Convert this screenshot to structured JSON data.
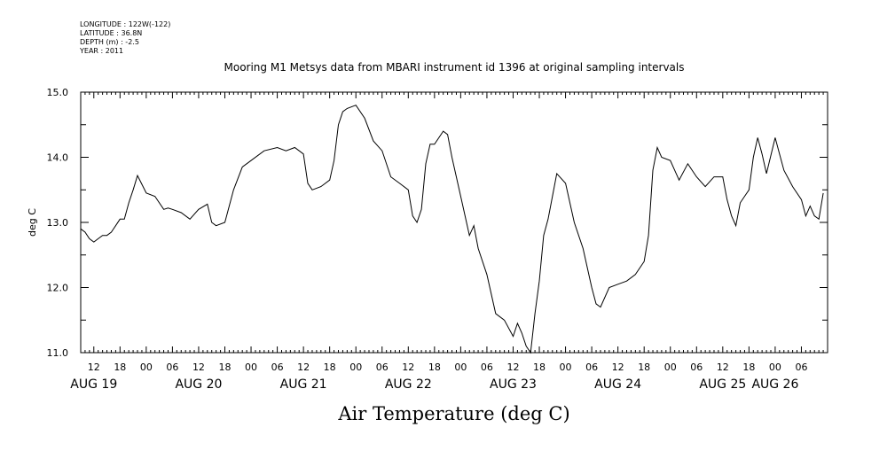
{
  "header": {
    "meta_lines": [
      "LONGITUDE : 122W(-122)",
      "LATITUDE : 36.8N",
      "DEPTH (m) : -2.5",
      "YEAR : 2011"
    ],
    "title": "Mooring M1 Metsys data from MBARI instrument id 1396 at original sampling intervals"
  },
  "chart_data": {
    "type": "line",
    "title": "Mooring M1 Metsys data from MBARI instrument id 1396 at original sampling intervals",
    "xlabel": "Air Temperature (deg C)",
    "ylabel": "deg C",
    "ylim": [
      11.0,
      15.0
    ],
    "yticks": [
      "11.0",
      "12.0",
      "13.0",
      "14.0",
      "15.0"
    ],
    "xlim": [
      "2011-08-19 09:00",
      "2011-08-26 12:00"
    ],
    "x_hour_ticks": [
      {
        "t": "2011-08-19 12:00",
        "label": "12"
      },
      {
        "t": "2011-08-19 18:00",
        "label": "18"
      },
      {
        "t": "2011-08-20 00:00",
        "label": "00"
      },
      {
        "t": "2011-08-20 06:00",
        "label": "06"
      },
      {
        "t": "2011-08-20 12:00",
        "label": "12"
      },
      {
        "t": "2011-08-20 18:00",
        "label": "18"
      },
      {
        "t": "2011-08-21 00:00",
        "label": "00"
      },
      {
        "t": "2011-08-21 06:00",
        "label": "06"
      },
      {
        "t": "2011-08-21 12:00",
        "label": "12"
      },
      {
        "t": "2011-08-21 18:00",
        "label": "18"
      },
      {
        "t": "2011-08-22 00:00",
        "label": "00"
      },
      {
        "t": "2011-08-22 06:00",
        "label": "06"
      },
      {
        "t": "2011-08-22 12:00",
        "label": "12"
      },
      {
        "t": "2011-08-22 18:00",
        "label": "18"
      },
      {
        "t": "2011-08-23 00:00",
        "label": "00"
      },
      {
        "t": "2011-08-23 06:00",
        "label": "06"
      },
      {
        "t": "2011-08-23 12:00",
        "label": "12"
      },
      {
        "t": "2011-08-23 18:00",
        "label": "18"
      },
      {
        "t": "2011-08-24 00:00",
        "label": "00"
      },
      {
        "t": "2011-08-24 06:00",
        "label": "06"
      },
      {
        "t": "2011-08-24 12:00",
        "label": "12"
      },
      {
        "t": "2011-08-24 18:00",
        "label": "18"
      },
      {
        "t": "2011-08-25 00:00",
        "label": "00"
      },
      {
        "t": "2011-08-25 06:00",
        "label": "06"
      },
      {
        "t": "2011-08-25 12:00",
        "label": "12"
      },
      {
        "t": "2011-08-25 18:00",
        "label": "18"
      },
      {
        "t": "2011-08-26 00:00",
        "label": "00"
      },
      {
        "t": "2011-08-26 06:00",
        "label": "06"
      }
    ],
    "x_day_labels": [
      {
        "t": "2011-08-19 12:00",
        "label": "AUG 19"
      },
      {
        "t": "2011-08-20 12:00",
        "label": "AUG 20"
      },
      {
        "t": "2011-08-21 12:00",
        "label": "AUG 21"
      },
      {
        "t": "2011-08-22 12:00",
        "label": "AUG 22"
      },
      {
        "t": "2011-08-23 12:00",
        "label": "AUG 23"
      },
      {
        "t": "2011-08-24 12:00",
        "label": "AUG 24"
      },
      {
        "t": "2011-08-25 12:00",
        "label": "AUG 25"
      },
      {
        "t": "2011-08-26 00:00",
        "label": "AUG 26"
      }
    ],
    "series": [
      {
        "x": [
          "2011-08-19 09:00",
          "2011-08-19 10:00",
          "2011-08-19 11:00",
          "2011-08-19 12:00",
          "2011-08-19 13:00",
          "2011-08-19 14:00",
          "2011-08-19 15:00",
          "2011-08-19 16:00",
          "2011-08-19 17:00",
          "2011-08-19 18:00",
          "2011-08-19 19:00",
          "2011-08-19 20:00",
          "2011-08-19 21:00",
          "2011-08-19 22:00",
          "2011-08-20 00:00",
          "2011-08-20 02:00",
          "2011-08-20 04:00",
          "2011-08-20 05:00",
          "2011-08-20 06:00",
          "2011-08-20 08:00",
          "2011-08-20 10:00",
          "2011-08-20 12:00",
          "2011-08-20 14:00",
          "2011-08-20 15:00",
          "2011-08-20 16:00",
          "2011-08-20 18:00",
          "2011-08-20 20:00",
          "2011-08-20 22:00",
          "2011-08-21 00:00",
          "2011-08-21 03:00",
          "2011-08-21 06:00",
          "2011-08-21 08:00",
          "2011-08-21 10:00",
          "2011-08-21 12:00",
          "2011-08-21 13:00",
          "2011-08-21 14:00",
          "2011-08-21 16:00",
          "2011-08-21 18:00",
          "2011-08-21 19:00",
          "2011-08-21 20:00",
          "2011-08-21 21:00",
          "2011-08-21 22:00",
          "2011-08-22 00:00",
          "2011-08-22 02:00",
          "2011-08-22 04:00",
          "2011-08-22 06:00",
          "2011-08-22 08:00",
          "2011-08-22 10:00",
          "2011-08-22 12:00",
          "2011-08-22 13:00",
          "2011-08-22 14:00",
          "2011-08-22 15:00",
          "2011-08-22 16:00",
          "2011-08-22 17:00",
          "2011-08-22 18:00",
          "2011-08-22 19:00",
          "2011-08-22 20:00",
          "2011-08-22 21:00",
          "2011-08-22 22:00",
          "2011-08-23 00:00",
          "2011-08-23 02:00",
          "2011-08-23 03:00",
          "2011-08-23 04:00",
          "2011-08-23 06:00",
          "2011-08-23 08:00",
          "2011-08-23 10:00",
          "2011-08-23 12:00",
          "2011-08-23 13:00",
          "2011-08-23 14:00",
          "2011-08-23 15:00",
          "2011-08-23 16:00",
          "2011-08-23 17:00",
          "2011-08-23 18:00",
          "2011-08-23 19:00",
          "2011-08-23 20:00",
          "2011-08-23 21:00",
          "2011-08-23 22:00",
          "2011-08-24 00:00",
          "2011-08-24 02:00",
          "2011-08-24 04:00",
          "2011-08-24 06:00",
          "2011-08-24 07:00",
          "2011-08-24 08:00",
          "2011-08-24 10:00",
          "2011-08-24 12:00",
          "2011-08-24 14:00",
          "2011-08-24 16:00",
          "2011-08-24 18:00",
          "2011-08-24 19:00",
          "2011-08-24 20:00",
          "2011-08-24 21:00",
          "2011-08-24 22:00",
          "2011-08-25 00:00",
          "2011-08-25 02:00",
          "2011-08-25 04:00",
          "2011-08-25 06:00",
          "2011-08-25 08:00",
          "2011-08-25 10:00",
          "2011-08-25 12:00",
          "2011-08-25 13:00",
          "2011-08-25 14:00",
          "2011-08-25 15:00",
          "2011-08-25 16:00",
          "2011-08-25 17:00",
          "2011-08-25 18:00",
          "2011-08-25 19:00",
          "2011-08-25 20:00",
          "2011-08-25 21:00",
          "2011-08-25 22:00",
          "2011-08-26 00:00",
          "2011-08-26 01:00",
          "2011-08-26 02:00",
          "2011-08-26 04:00",
          "2011-08-26 06:00",
          "2011-08-26 07:00",
          "2011-08-26 08:00",
          "2011-08-26 09:00",
          "2011-08-26 10:00",
          "2011-08-26 11:00"
        ],
        "y": [
          12.9,
          12.85,
          12.75,
          12.7,
          12.75,
          12.8,
          12.8,
          12.85,
          12.95,
          13.05,
          13.05,
          13.3,
          13.5,
          13.72,
          13.45,
          13.4,
          13.2,
          13.22,
          13.2,
          13.15,
          13.05,
          13.2,
          13.28,
          13.0,
          12.95,
          13.0,
          13.5,
          13.85,
          13.95,
          14.1,
          14.15,
          14.1,
          14.15,
          14.05,
          13.6,
          13.5,
          13.55,
          13.65,
          13.95,
          14.5,
          14.7,
          14.75,
          14.8,
          14.6,
          14.25,
          14.1,
          13.7,
          13.6,
          13.5,
          13.1,
          13.0,
          13.2,
          13.9,
          14.2,
          14.2,
          14.3,
          14.4,
          14.35,
          14.0,
          13.4,
          12.8,
          12.95,
          12.6,
          12.2,
          11.6,
          11.5,
          11.25,
          11.45,
          11.3,
          11.1,
          11.0,
          11.6,
          12.1,
          12.8,
          13.05,
          13.4,
          13.75,
          13.6,
          13.0,
          12.6,
          12.0,
          11.75,
          11.7,
          12.0,
          12.05,
          12.1,
          12.2,
          12.4,
          12.8,
          13.8,
          14.15,
          14.0,
          13.95,
          13.65,
          13.9,
          13.7,
          13.55,
          13.7,
          13.7,
          13.35,
          13.1,
          12.95,
          13.3,
          13.4,
          13.5,
          14.0,
          14.3,
          14.05,
          13.75,
          14.3,
          14.05,
          13.8,
          13.55,
          13.35,
          13.1,
          13.25,
          13.1,
          13.05,
          13.45
        ]
      }
    ],
    "grid": false,
    "line_color": "#000000",
    "background": "#ffffff"
  }
}
